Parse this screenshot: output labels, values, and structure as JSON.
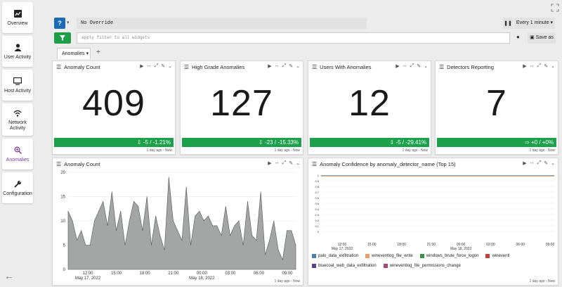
{
  "sidebar": {
    "items": [
      {
        "label": "Overview"
      },
      {
        "label": "User Activity"
      },
      {
        "label": "Host Activity"
      },
      {
        "label": "Network Activity"
      },
      {
        "label": "Anomalies"
      },
      {
        "label": "Configuration"
      }
    ]
  },
  "toolbar": {
    "override_text": "No Override",
    "refresh_label": "Every 1 minute",
    "filter_placeholder": "apply filter to all widgets",
    "save_label": "Save as"
  },
  "tabs": [
    {
      "label": "Anomalies"
    }
  ],
  "accent_colors": {
    "blue": "#1a6bb8",
    "green": "#1da04a",
    "active_purple": "#7b3a9c"
  },
  "metrics": [
    {
      "title": "Anomaly Count",
      "value": "409",
      "delta": "-5 / -1.21%",
      "timestamp": "1 day ago - Now"
    },
    {
      "title": "High Grade Anomalies",
      "value": "127",
      "delta": "-23 / -15.33%",
      "timestamp": "1 day ago - Now"
    },
    {
      "title": "Users With Anomalies",
      "value": "12",
      "delta": "-5 / -29.41%",
      "timestamp": "1 day ago - Now"
    },
    {
      "title": "Detectors Reporting",
      "value": "7",
      "delta": "+0 / +0%",
      "timestamp": "1 day ago - Now"
    }
  ],
  "chart_panels": {
    "count": {
      "title": "Anomaly Count",
      "timestamp": "1 day ago - Now"
    },
    "confidence": {
      "title": "Anomaly Confidence by anomaly_detector_name (Top 15)",
      "timestamp": "1 day ago - Now",
      "legend": [
        {
          "name": "palo_data_exfiltration",
          "color": "#4a7fb0"
        },
        {
          "name": "wineventlog_file_write",
          "color": "#e8a06a"
        },
        {
          "name": "windows_brute_force_logon",
          "color": "#3f8f4f"
        },
        {
          "name": "wineventl",
          "color": "#c0443c"
        },
        {
          "name": "bluecoat_web_data_exfiltration",
          "color": "#5a3f8c"
        },
        {
          "name": "wineventlog_file_permissions_change",
          "color": "#a04a78"
        }
      ]
    }
  },
  "chart_data": [
    {
      "type": "area",
      "title": "Anomaly Count",
      "ylim": [
        0,
        20
      ],
      "yticks": [
        "0",
        "5",
        "10",
        "15",
        "20"
      ],
      "xticks": [
        "12:00",
        "15:00",
        "18:00",
        "21:00",
        "00:00",
        "03:00",
        "06:00",
        "09:00"
      ],
      "xdates": [
        "May 17, 2022",
        "May 18, 2022"
      ],
      "values": [
        12,
        10,
        6,
        8,
        5,
        5,
        10,
        12,
        14,
        9,
        16,
        8,
        12,
        5,
        10,
        14,
        13,
        8,
        15,
        5,
        11,
        7,
        4,
        19,
        10,
        8,
        6,
        17,
        5,
        11,
        12,
        10,
        11,
        9,
        9,
        7,
        13,
        7,
        9,
        10,
        5,
        14,
        7,
        6,
        16,
        3,
        6,
        10,
        4,
        2,
        8,
        8,
        5
      ]
    },
    {
      "type": "line",
      "title": "Anomaly Confidence by anomaly_detector_name (Top 15)",
      "ylim": [
        0,
        1
      ],
      "yticks": [
        "0",
        "0.1",
        "0.2",
        "0.3",
        "0.4",
        "0.5",
        "0.6",
        "0.7",
        "0.8",
        "0.9",
        "1"
      ],
      "xticks": [
        "12:00",
        "15:00",
        "18:00",
        "21:00",
        "00:00",
        "03:00",
        "06:00",
        "09:00"
      ],
      "xdates": [
        "May 17, 2022",
        "May 18, 2022"
      ],
      "series": [
        {
          "name": "palo_data_exfiltration",
          "values": [
            0.99,
            0.99,
            0.99,
            0.99,
            0.99,
            0.99,
            0.99,
            0.99
          ]
        },
        {
          "name": "wineventlog_file_write",
          "values": [
            0.99,
            0.99,
            0.99,
            0.99,
            0.99,
            0.99,
            0.99,
            0.99
          ]
        }
      ]
    }
  ]
}
